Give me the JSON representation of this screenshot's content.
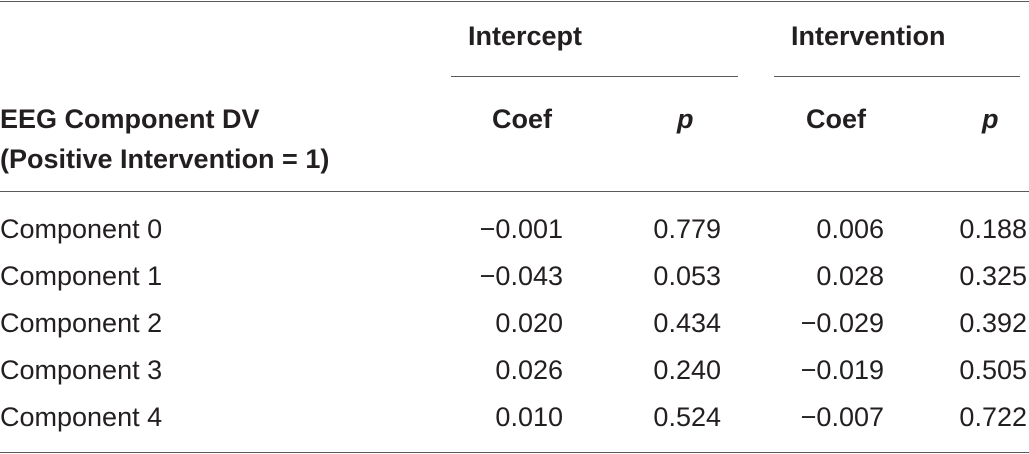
{
  "table": {
    "group_headers": {
      "intercept": "Intercept",
      "intervention": "Intervention"
    },
    "row_header_line1": "EEG Component DV",
    "row_header_line2": "(Positive Intervention = 1)",
    "columns": [
      "Coef",
      "p",
      "Coef",
      "p"
    ],
    "rows": [
      {
        "label": "Component 0",
        "cells": [
          "−0.001",
          "0.779",
          "0.006",
          "0.188"
        ]
      },
      {
        "label": "Component 1",
        "cells": [
          "−0.043",
          "0.053",
          "0.028",
          "0.325"
        ]
      },
      {
        "label": "Component 2",
        "cells": [
          "0.020",
          "0.434",
          "−0.029",
          "0.392"
        ]
      },
      {
        "label": "Component 3",
        "cells": [
          "0.026",
          "0.240",
          "−0.019",
          "0.505"
        ]
      },
      {
        "label": "Component 4",
        "cells": [
          "0.010",
          "0.524",
          "−0.007",
          "0.722"
        ]
      }
    ]
  }
}
